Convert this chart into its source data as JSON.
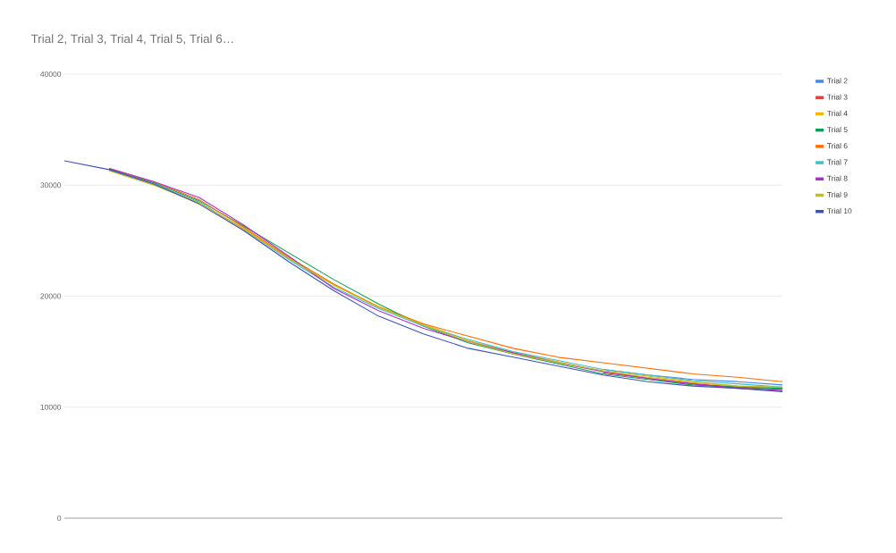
{
  "chart_data": {
    "type": "line",
    "title": "Trial 2, Trial 3, Trial 4, Trial 5, Trial 6…",
    "categories": [
      null,
      null,
      null,
      null,
      null,
      null,
      null,
      null,
      null,
      null,
      null,
      null,
      null,
      null,
      null,
      null,
      null
    ],
    "series": [
      {
        "name": "Trial 2",
        "color": "#4285f4",
        "values": [
          null,
          null,
          null,
          null,
          null,
          null,
          null,
          null,
          null,
          null,
          null,
          null,
          13400,
          12900,
          12500,
          12300,
          12000
        ]
      },
      {
        "name": "Trial 3",
        "color": "#db4437",
        "values": [
          null,
          null,
          null,
          null,
          null,
          null,
          null,
          null,
          null,
          null,
          null,
          null,
          13100,
          12600,
          12100,
          11800,
          11600
        ]
      },
      {
        "name": "Trial 4",
        "color": "#f4b400",
        "values": [
          null,
          31300,
          30000,
          28400,
          26100,
          23400,
          21000,
          19100,
          17500,
          16000,
          14900,
          14100,
          13200,
          12700,
          12200,
          11900,
          11700
        ]
      },
      {
        "name": "Trial 5",
        "color": "#0f9d58",
        "values": [
          null,
          31400,
          30200,
          28600,
          26300,
          23900,
          21500,
          19300,
          17300,
          15800,
          14800,
          13900,
          13000,
          12500,
          12000,
          11800,
          11700
        ]
      },
      {
        "name": "Trial 6",
        "color": "#ff6d00",
        "values": [
          null,
          31500,
          30300,
          28700,
          26200,
          23500,
          21100,
          19000,
          17500,
          16400,
          15300,
          14500,
          14000,
          13500,
          13000,
          12700,
          12300
        ]
      },
      {
        "name": "Trial 7",
        "color": "#46bdc6",
        "values": [
          null,
          31400,
          30100,
          28500,
          26000,
          23300,
          20800,
          18900,
          17300,
          16100,
          15000,
          14200,
          13400,
          12900,
          12400,
          12100,
          11800
        ]
      },
      {
        "name": "Trial 8",
        "color": "#ab30c4",
        "values": [
          null,
          31500,
          30300,
          28900,
          26400,
          23600,
          20700,
          18700,
          17100,
          15900,
          14900,
          14000,
          13200,
          12600,
          12100,
          11700,
          11500
        ]
      },
      {
        "name": "Trial 9",
        "color": "#bdbd2a",
        "values": [
          null,
          31300,
          30000,
          28400,
          26000,
          23400,
          21000,
          19000,
          17400,
          15900,
          14800,
          14000,
          13300,
          12800,
          12300,
          11900,
          11800
        ]
      },
      {
        "name": "Trial 10",
        "color": "#3f51b5",
        "values": [
          32200,
          31400,
          30100,
          28300,
          25900,
          23100,
          20500,
          18200,
          16600,
          15300,
          14500,
          13700,
          12900,
          12300,
          11900,
          11700,
          11400
        ]
      }
    ],
    "ylim": [
      0,
      40000
    ],
    "yticks": [
      0,
      10000,
      20000,
      30000,
      40000
    ],
    "grid": "y",
    "legend": "right",
    "tick_labels": "y",
    "marker": "none",
    "line_style": "solid"
  }
}
